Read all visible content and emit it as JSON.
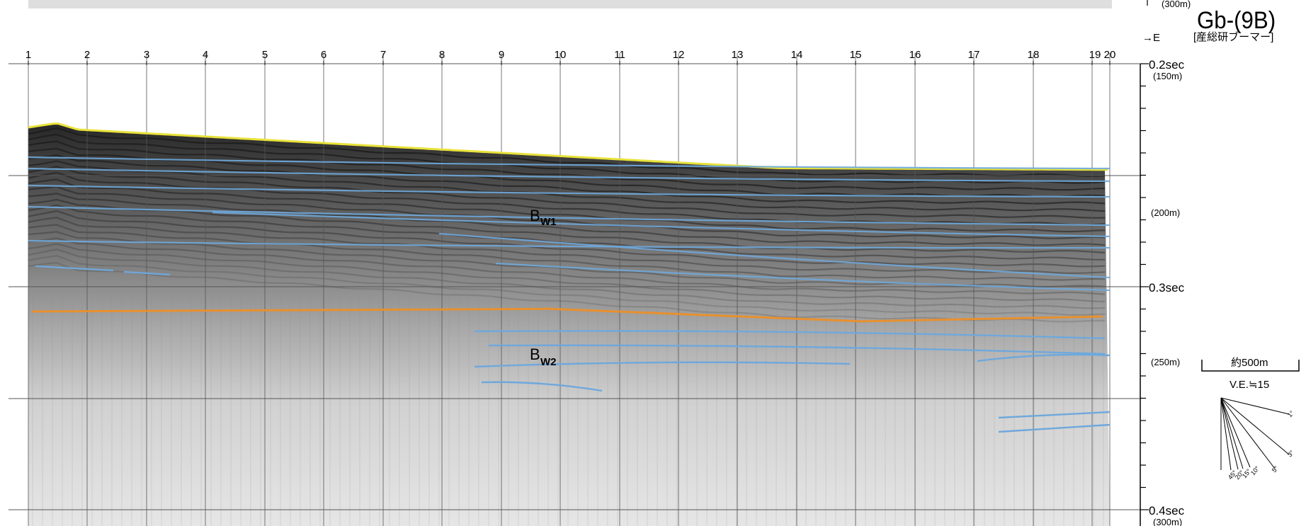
{
  "profile": {
    "id": "Gb-(9B)",
    "source_label": "[産総研ブーマー]",
    "direction_label": "→E",
    "partial_top_label": "(300m)",
    "shotpoints": [
      "1",
      "2",
      "3",
      "4",
      "5",
      "6",
      "7",
      "8",
      "9",
      "10",
      "11",
      "12",
      "13",
      "14",
      "15",
      "16",
      "17",
      "18",
      "19",
      "20"
    ]
  },
  "time_axis": {
    "major": [
      {
        "value": "0.2sec",
        "depth": "(150m)"
      },
      {
        "value": "0.3sec",
        "depth": null
      },
      {
        "value": "0.4sec",
        "depth": "(300m)"
      }
    ],
    "depth_labels": [
      "(200m)",
      "(250m)"
    ]
  },
  "horizons": [
    {
      "label": "B",
      "subscript": "W1",
      "color": "#6fa8dc"
    },
    {
      "label": "B",
      "subscript": "W2",
      "color": "#6fa8dc"
    }
  ],
  "colors": {
    "seafloor": "#e8e23a",
    "orange_horizon": "#e8902e",
    "blue_horizons": "#6fa8dc",
    "grid": "#555555",
    "seismic_dark": "#1a1a1a"
  },
  "scale": {
    "distance_label": "約500m",
    "ve_label": "V.E.≒15",
    "dip_labels": [
      "1°",
      "3°",
      "5°",
      "10°",
      "15°",
      "20°",
      "45°"
    ]
  }
}
